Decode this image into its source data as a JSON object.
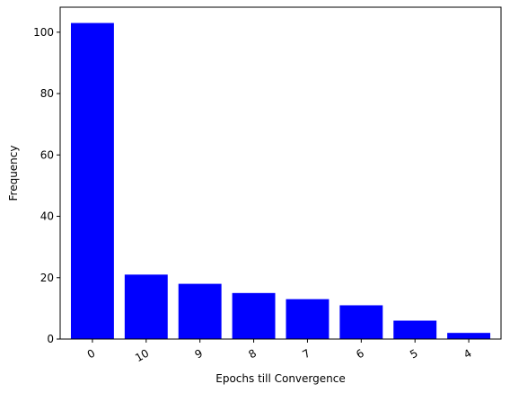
{
  "chart_data": {
    "type": "bar",
    "categories": [
      "0",
      "10",
      "9",
      "8",
      "7",
      "6",
      "5",
      "4"
    ],
    "values": [
      103,
      21,
      18,
      15,
      13,
      11,
      6,
      2
    ],
    "title": "",
    "xlabel": "Epochs till Convergence",
    "ylabel": "Frequency",
    "ylim": [
      0,
      108.15
    ],
    "yticks": [
      "0",
      "20",
      "40",
      "60",
      "80",
      "100"
    ],
    "bar_color": "#0000ff",
    "x_tick_rotation_deg": 30,
    "grid": false,
    "legend": "none"
  }
}
